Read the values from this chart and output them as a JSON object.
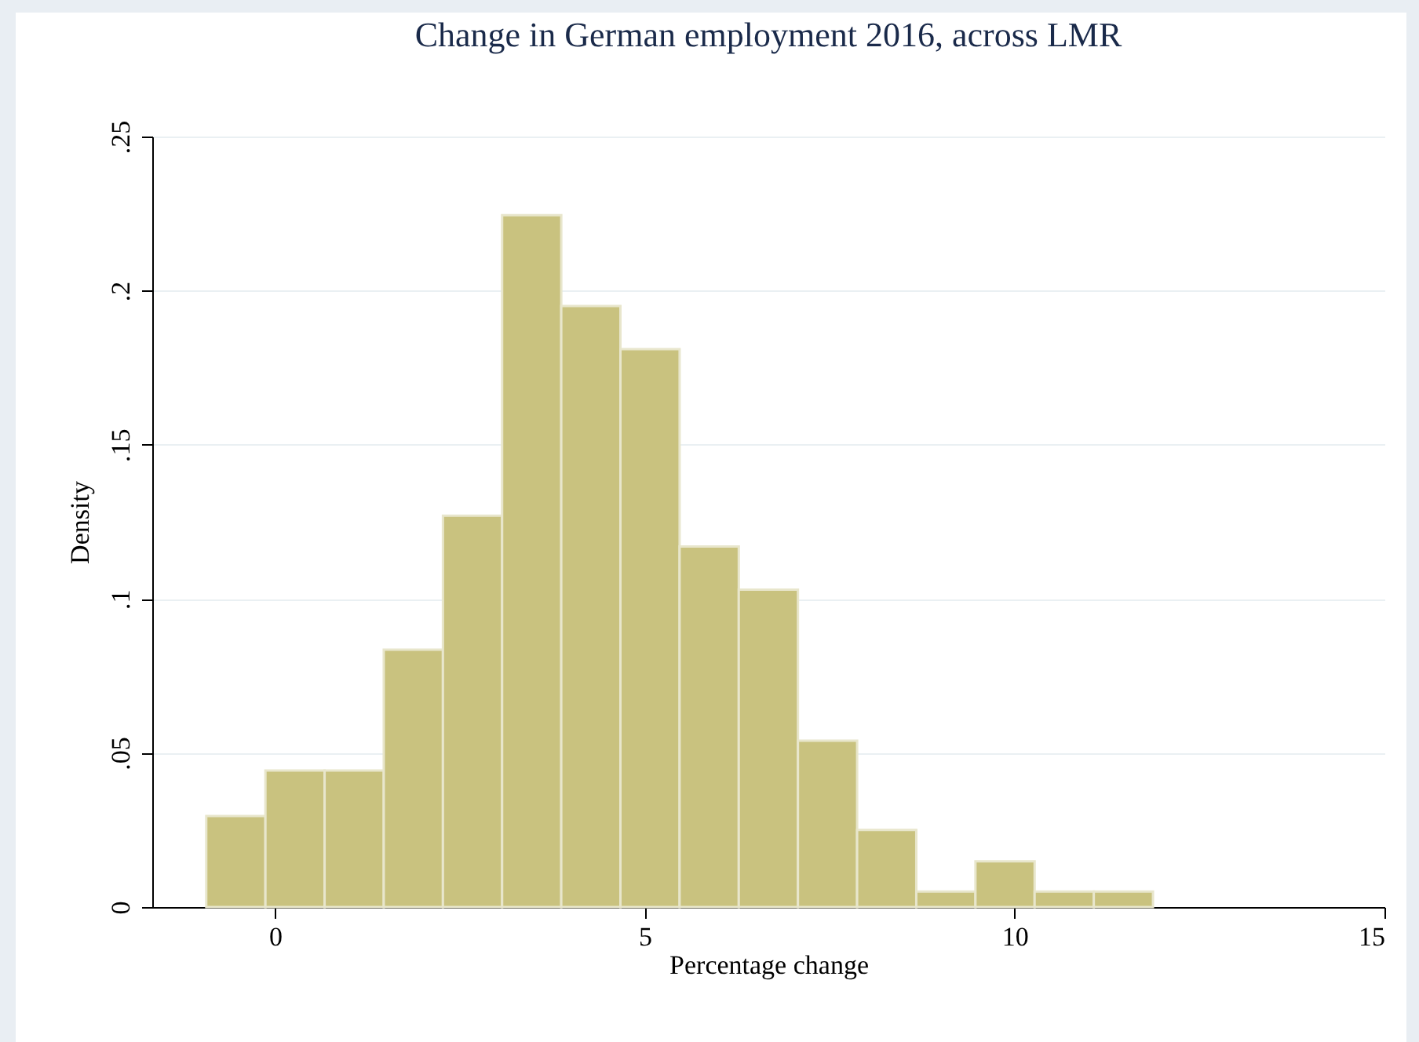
{
  "chart_data": {
    "type": "histogram",
    "title": "Change in German employment 2016, across LMR",
    "xlabel": "Percentage change",
    "ylabel": "Density",
    "bins": [
      -0.93,
      -0.13,
      0.67,
      1.47,
      2.27,
      3.07,
      3.87,
      4.67,
      5.47,
      6.27,
      7.07,
      7.87,
      8.67,
      9.47,
      10.27,
      11.07,
      11.87
    ],
    "values": [
      0.0295,
      0.0443,
      0.0443,
      0.0835,
      0.127,
      0.2245,
      0.195,
      0.181,
      0.117,
      0.103,
      0.054,
      0.025,
      0.005,
      0.0148,
      0.005,
      0.005
    ],
    "color": "#c9c27f",
    "xlim": [
      -1.66,
      15
    ],
    "xticks": [
      0,
      5,
      10,
      15
    ],
    "ylim": [
      0,
      0.25
    ],
    "yticks": [
      {
        "value": 0,
        "label": "0"
      },
      {
        "value": 0.05,
        "label": ".05"
      },
      {
        "value": 0.1,
        "label": ".1"
      },
      {
        "value": 0.15,
        "label": ".15"
      },
      {
        "value": 0.2,
        "label": ".2"
      },
      {
        "value": 0.25,
        "label": ".25"
      }
    ],
    "grid": "y"
  }
}
